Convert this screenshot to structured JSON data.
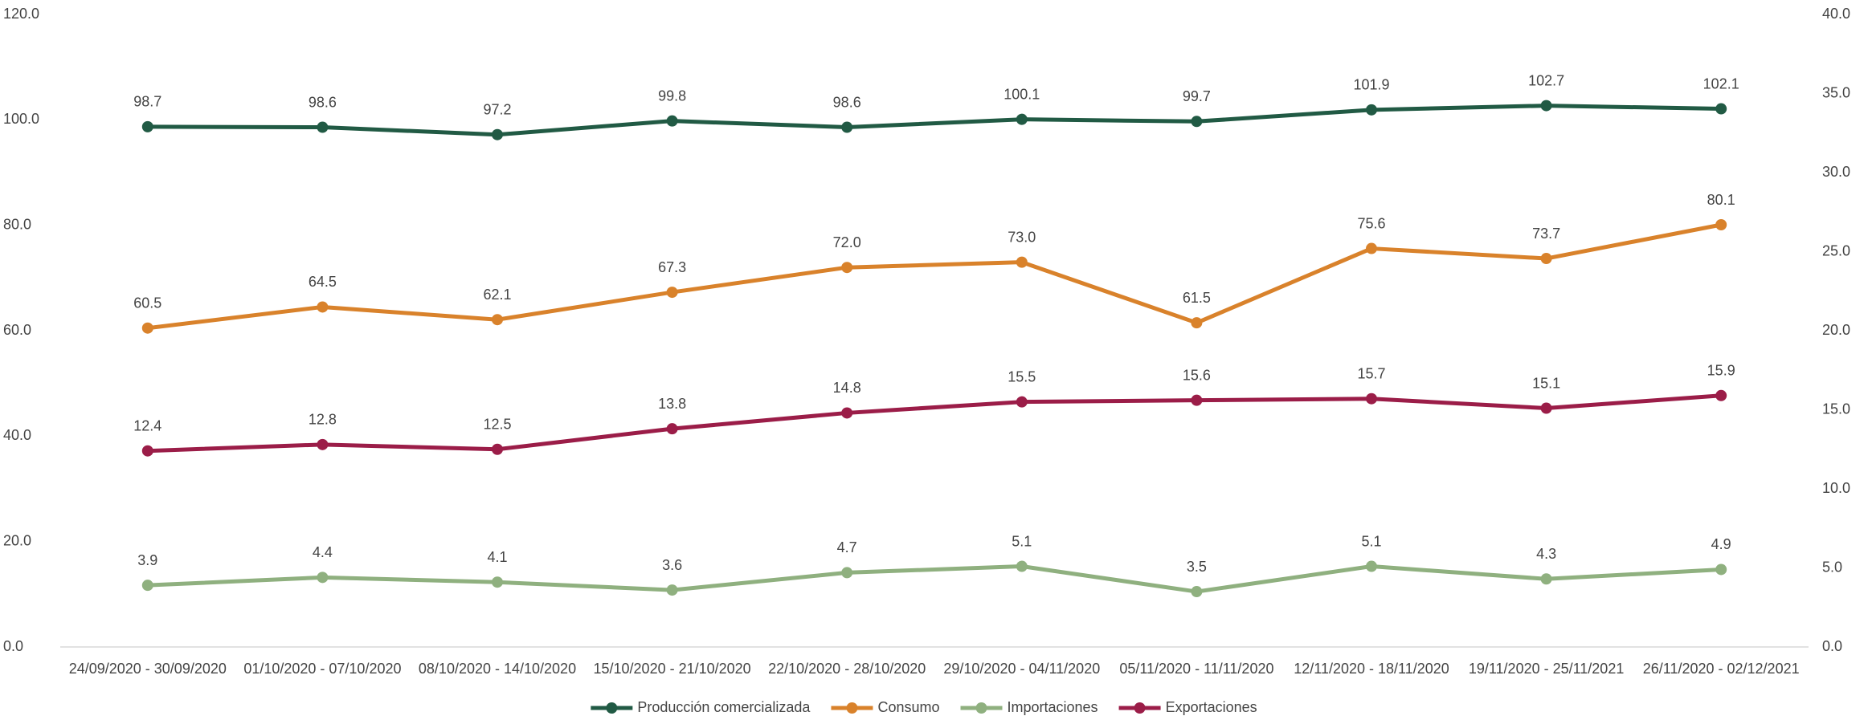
{
  "chart_data": {
    "type": "line",
    "categories": [
      "24/09/2020 - 30/09/2020",
      "01/10/2020 - 07/10/2020",
      "08/10/2020 - 14/10/2020",
      "15/10/2020 - 21/10/2020",
      "22/10/2020 - 28/10/2020",
      "29/10/2020 - 04/11/2020",
      "05/11/2020 - 11/11/2020",
      "12/11/2020 - 18/11/2020",
      "19/11/2020 - 25/11/2021",
      "26/11/2020 - 02/12/2021"
    ],
    "series": [
      {
        "name": "Producción comercializada",
        "color": "#215a44",
        "values": [
          98.7,
          98.6,
          97.2,
          99.8,
          98.6,
          100.1,
          99.7,
          101.9,
          102.7,
          102.1
        ],
        "value_labels": [
          "98.7",
          "98.6",
          "97.2",
          "99.8",
          "98.6",
          "100.1",
          "99.7",
          "101.9",
          "102.7",
          "102.1"
        ]
      },
      {
        "name": "Consumo",
        "color": "#d9822b",
        "values": [
          60.5,
          64.5,
          62.1,
          67.3,
          72.0,
          73.0,
          61.5,
          75.6,
          73.7,
          80.1
        ],
        "value_labels": [
          "60.5",
          "64.5",
          "62.1",
          "67.3",
          "72.0",
          "73.0",
          "61.5",
          "75.6",
          "73.7",
          "80.1"
        ]
      },
      {
        "name": "Importaciones",
        "color": "#8fb07f",
        "axis": "y2",
        "values": [
          3.9,
          4.4,
          4.1,
          3.6,
          4.7,
          5.1,
          3.5,
          5.1,
          4.3,
          4.9
        ],
        "value_labels": [
          "3.9",
          "4.4",
          "4.1",
          "3.6",
          "4.7",
          "5.1",
          "3.5",
          "5.1",
          "4.3",
          "4.9"
        ]
      },
      {
        "name": "Exportaciones",
        "color": "#9b1d48",
        "axis": "y2",
        "values": [
          12.4,
          12.8,
          12.5,
          13.8,
          14.8,
          15.5,
          15.6,
          15.7,
          15.1,
          15.9
        ],
        "value_labels": [
          "12.4",
          "12.8",
          "12.5",
          "13.8",
          "14.8",
          "15.5",
          "15.6",
          "15.7",
          "15.1",
          "15.9"
        ]
      }
    ],
    "ylim": [
      0,
      120
    ],
    "yticks": [
      {
        "value": 0,
        "label": "0.0"
      },
      {
        "value": 20,
        "label": "20.0"
      },
      {
        "value": 40,
        "label": "40.0"
      },
      {
        "value": 60,
        "label": "60.0"
      },
      {
        "value": 80,
        "label": "80.0"
      },
      {
        "value": 100,
        "label": "100.0"
      },
      {
        "value": 120,
        "label": "120.0"
      }
    ],
    "y2lim": [
      0,
      40
    ],
    "y2ticks": [
      {
        "value": 0,
        "label": "0.0"
      },
      {
        "value": 5,
        "label": "5.0"
      },
      {
        "value": 10,
        "label": "10.0"
      },
      {
        "value": 15,
        "label": "15.0"
      },
      {
        "value": 20,
        "label": "20.0"
      },
      {
        "value": 25,
        "label": "25.0"
      },
      {
        "value": 30,
        "label": "30.0"
      },
      {
        "value": 35,
        "label": "35.0"
      },
      {
        "value": 40,
        "label": "40.0"
      }
    ],
    "legend": "bottom"
  }
}
